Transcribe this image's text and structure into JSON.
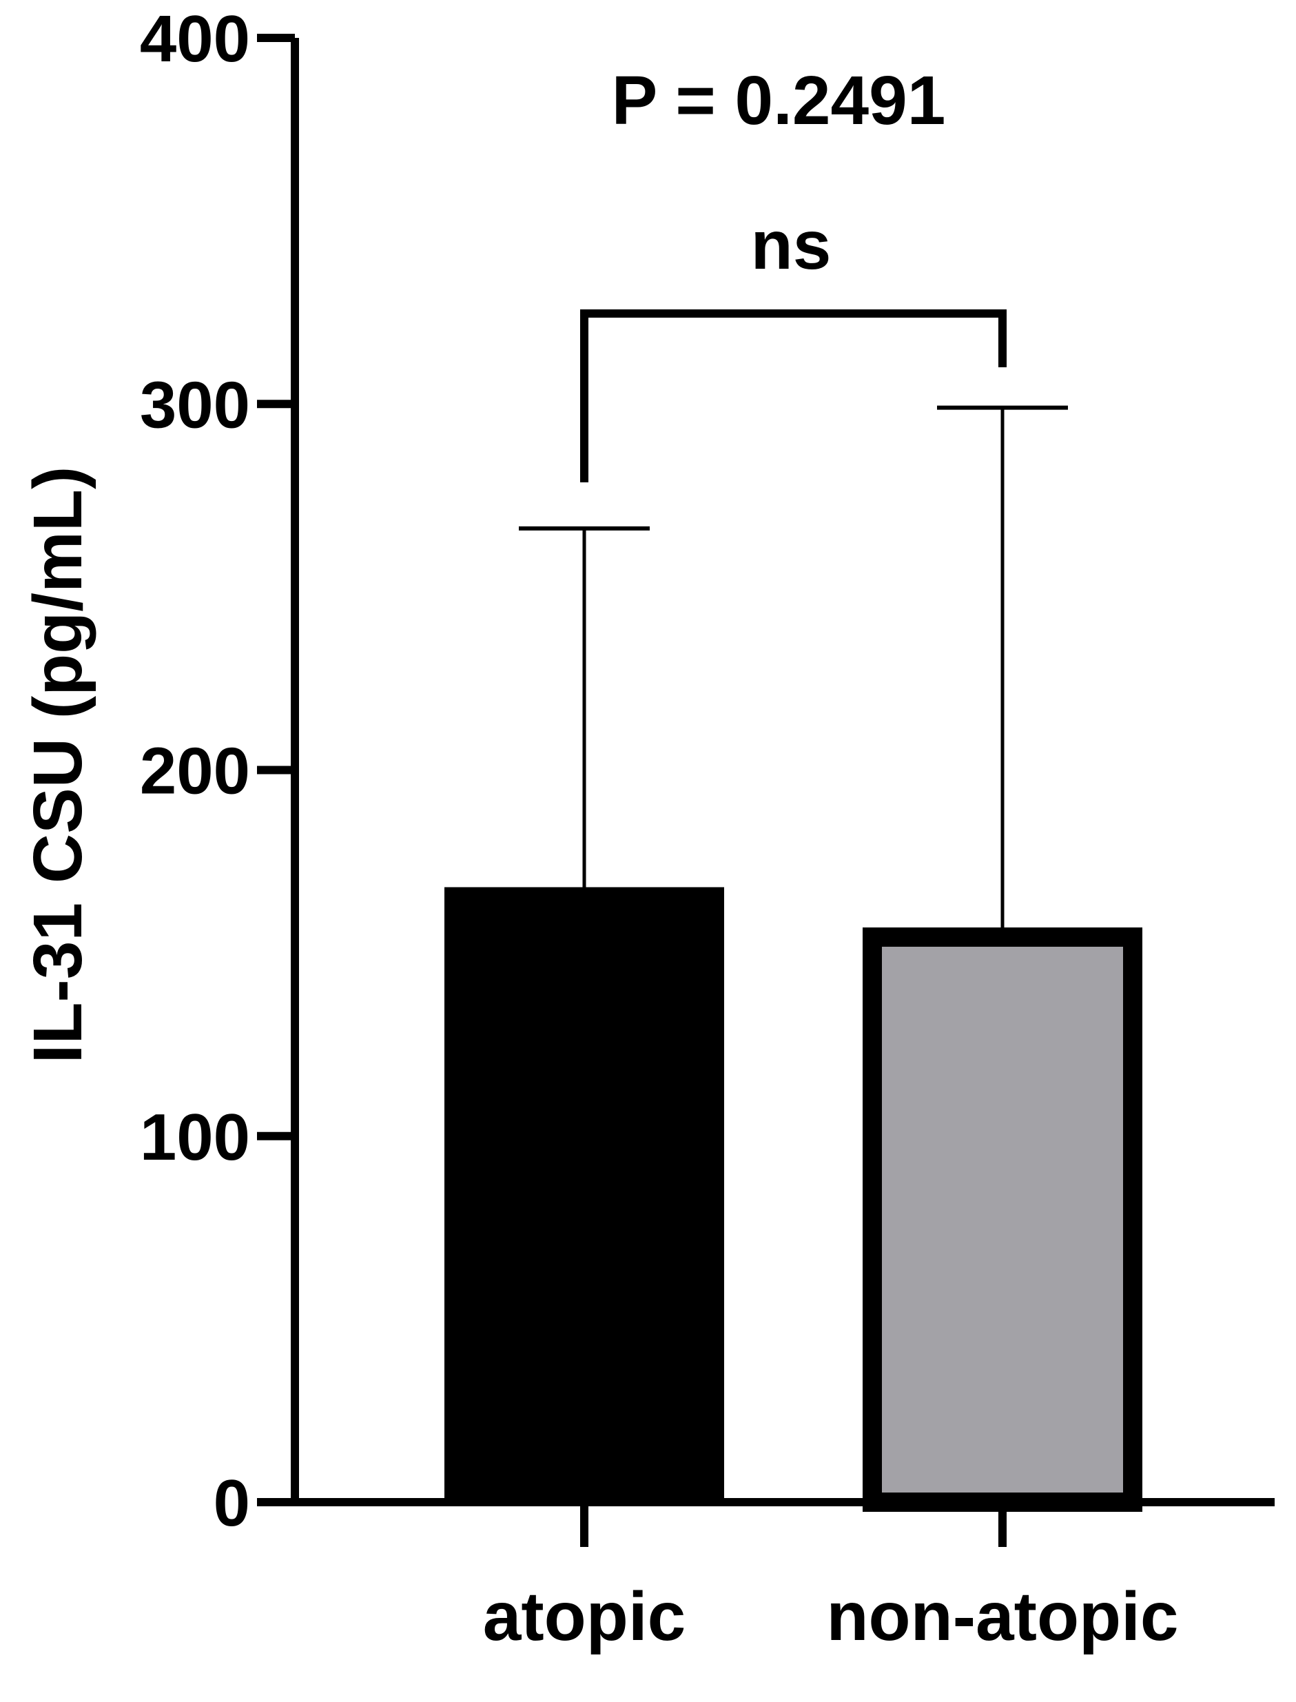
{
  "chart_data": {
    "type": "bar",
    "title": "",
    "xlabel": "",
    "ylabel": "IL-31 CSU (pg/mL)",
    "ylim": [
      0,
      400
    ],
    "yticks": [
      0,
      100,
      200,
      300,
      400
    ],
    "grid": false,
    "legend": "none",
    "categories": [
      "atopic",
      "non-atopic"
    ],
    "values": [
      168,
      157
    ],
    "error_upper": [
      266,
      299
    ],
    "colors": [
      "#000000",
      "#a3a2a7"
    ],
    "edge_color": "#000000",
    "annotations": {
      "p_value": "P = 0.2491",
      "significance": "ns"
    }
  }
}
